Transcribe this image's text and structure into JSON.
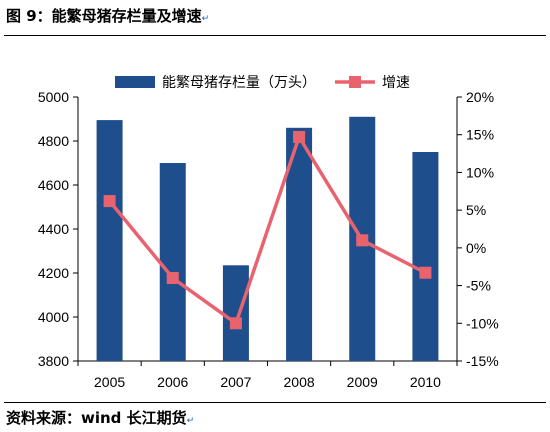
{
  "figure_title": "图 9：能繁母猪存栏量及增速",
  "source_text": "资料来源：wind 长江期货",
  "edit_mark": "↵",
  "colors": {
    "bar": "#1f4e8c",
    "line": "#e8636e"
  },
  "chart_data": {
    "type": "bar",
    "categories": [
      "2005",
      "2006",
      "2007",
      "2008",
      "2009",
      "2010"
    ],
    "series": [
      {
        "name": "能繁母猪存栏量（万头）",
        "type": "bar",
        "axis": "left",
        "values": [
          4895,
          4700,
          4235,
          4860,
          4910,
          4750
        ]
      },
      {
        "name": "增速",
        "type": "line",
        "axis": "right",
        "values": [
          6.2,
          -4.0,
          -10.0,
          14.7,
          1.0,
          -3.3
        ]
      }
    ],
    "y_left": {
      "min": 3800,
      "max": 5000,
      "ticks": [
        "3800",
        "4000",
        "4200",
        "4400",
        "4600",
        "4800",
        "5000"
      ]
    },
    "y_right": {
      "min": -15,
      "max": 20,
      "ticks": [
        "-15%",
        "-10%",
        "-5%",
        "0%",
        "5%",
        "10%",
        "15%",
        "20%"
      ]
    },
    "legend_position": "top",
    "grid": false
  }
}
